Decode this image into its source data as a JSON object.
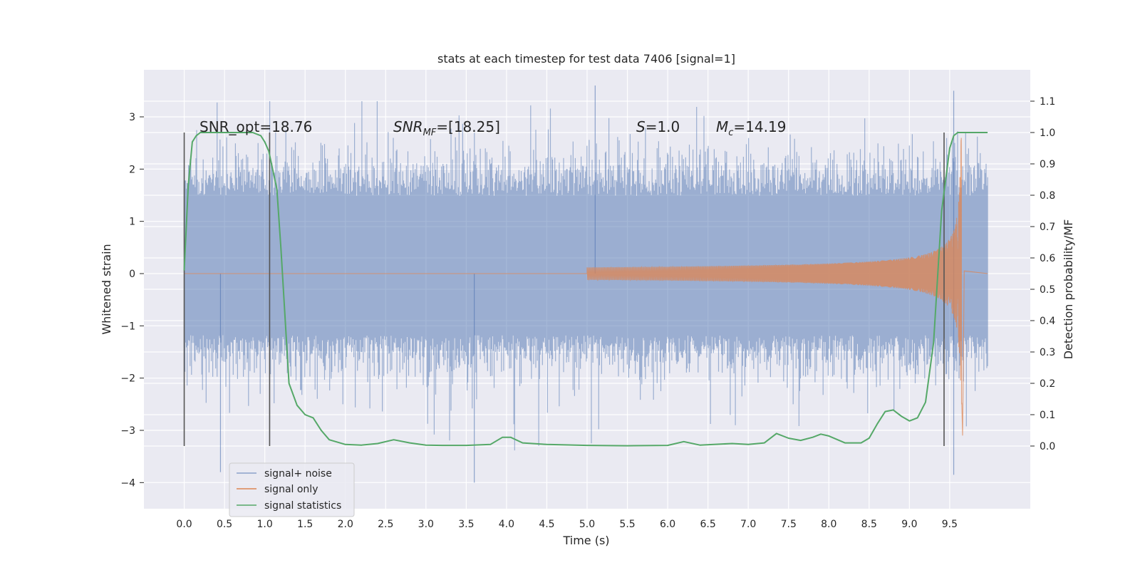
{
  "chart_data": {
    "type": "line",
    "title": "stats at each timestep for test data 7406 [signal=1]",
    "xlabel": "Time (s)",
    "ylabel_left": "Whitened strain",
    "ylabel_right": "Detection probability/MF",
    "xlim": [
      -0.5,
      10.5
    ],
    "ylim_left": [
      -4.5,
      3.9
    ],
    "ylim_right": [
      -0.2,
      1.2
    ],
    "x_ticks": [
      "0.0",
      "0.5",
      "1.0",
      "1.5",
      "2.0",
      "2.5",
      "3.0",
      "3.5",
      "4.0",
      "4.5",
      "5.0",
      "5.5",
      "6.0",
      "6.5",
      "7.0",
      "7.5",
      "8.0",
      "8.5",
      "9.0",
      "9.5"
    ],
    "y_left_ticks": [
      "−4",
      "−3",
      "−2",
      "−1",
      "0",
      "1",
      "2",
      "3"
    ],
    "y_right_ticks": [
      "0.0",
      "0.1",
      "0.2",
      "0.3",
      "0.4",
      "0.5",
      "0.6",
      "0.7",
      "0.8",
      "0.9",
      "1.0",
      "1.1"
    ],
    "grid": true,
    "legend_position": "lower left",
    "annotations": {
      "snr_opt": "SNR_opt=18.76",
      "snr_mf_main": "SNR",
      "snr_mf_sub": "MF",
      "snr_mf_value": "=[18.25]",
      "s_label": "S",
      "s_value": "=1.0",
      "mc_main": "M",
      "mc_sub": "c",
      "mc_value": "=14.19"
    },
    "vertical_markers": [
      0.0,
      1.06,
      9.43
    ],
    "colors": {
      "noise": "#4c72b0",
      "signal": "#dd8452",
      "stats": "#55a868",
      "background": "#eaeaf2",
      "marker": "#555555"
    },
    "series": [
      {
        "name": "signal+ noise",
        "axis": "left",
        "description_of_values": "whitened strain noise, roughly within -2 to 2.5 with peaks to about 3.6 and -4.0",
        "x_range": [
          0.0,
          9.97
        ],
        "typical_extent": [
          -1.9,
          2.4
        ],
        "extremes": [
          [
            0.45,
            -3.8
          ],
          [
            3.6,
            -4.0
          ],
          [
            5.1,
            3.6
          ],
          [
            9.55,
            -3.85
          ],
          [
            9.55,
            3.5
          ]
        ]
      },
      {
        "name": "signal only",
        "axis": "left",
        "x_range": [
          0.0,
          9.97
        ],
        "chirp_start": 5.0,
        "merger_time": 9.65,
        "peak_amplitude": 2.6
      },
      {
        "name": "signal statistics",
        "axis": "right",
        "x": [
          0.0,
          0.05,
          0.1,
          0.15,
          0.2,
          0.3,
          0.5,
          0.7,
          0.85,
          0.95,
          1.0,
          1.05,
          1.1,
          1.15,
          1.2,
          1.3,
          1.4,
          1.5,
          1.6,
          1.7,
          1.8,
          2.0,
          2.2,
          2.4,
          2.6,
          2.8,
          3.0,
          3.2,
          3.5,
          3.8,
          3.95,
          4.05,
          4.2,
          4.5,
          5.0,
          5.5,
          6.0,
          6.2,
          6.4,
          6.8,
          7.0,
          7.2,
          7.35,
          7.5,
          7.65,
          7.8,
          7.9,
          8.0,
          8.2,
          8.4,
          8.5,
          8.6,
          8.7,
          8.8,
          8.9,
          9.0,
          9.1,
          9.2,
          9.3,
          9.4,
          9.45,
          9.5,
          9.55,
          9.6,
          9.7,
          9.97
        ],
        "values": [
          0.56,
          0.83,
          0.97,
          0.99,
          1.0,
          1.0,
          1.0,
          1.0,
          1.0,
          0.99,
          0.97,
          0.94,
          0.88,
          0.82,
          0.63,
          0.2,
          0.13,
          0.1,
          0.09,
          0.05,
          0.02,
          0.005,
          0.003,
          0.008,
          0.02,
          0.01,
          0.003,
          0.002,
          0.002,
          0.005,
          0.028,
          0.028,
          0.01,
          0.005,
          0.002,
          0.001,
          0.002,
          0.014,
          0.003,
          0.008,
          0.005,
          0.01,
          0.04,
          0.025,
          0.018,
          0.028,
          0.038,
          0.032,
          0.01,
          0.01,
          0.025,
          0.07,
          0.11,
          0.115,
          0.095,
          0.08,
          0.09,
          0.14,
          0.33,
          0.75,
          0.85,
          0.95,
          0.99,
          1.0,
          1.0,
          1.0
        ]
      }
    ]
  }
}
